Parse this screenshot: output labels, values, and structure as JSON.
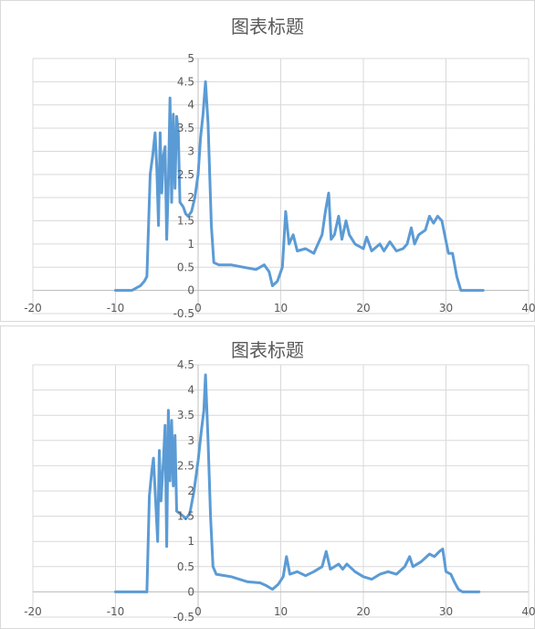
{
  "chart_data": [
    {
      "type": "line",
      "title": "图表标题",
      "xlim": [
        -20,
        40
      ],
      "ylim": [
        -0.5,
        5
      ],
      "x_ticks": [
        "-20",
        "-10",
        "0",
        "10",
        "20",
        "30",
        "40"
      ],
      "y_ticks": [
        "-0.5",
        "0",
        "0.5",
        "1",
        "1.5",
        "2",
        "2.5",
        "3",
        "3.5",
        "4",
        "4.5",
        "5"
      ],
      "series": [
        {
          "color": "#5b9bd5",
          "points": [
            [
              -10,
              0
            ],
            [
              -8,
              0
            ],
            [
              -7,
              0.1
            ],
            [
              -6.5,
              0.2
            ],
            [
              -6.2,
              0.3
            ],
            [
              -5.8,
              2.5
            ],
            [
              -5.5,
              2.9
            ],
            [
              -5.2,
              3.4
            ],
            [
              -5.0,
              2.6
            ],
            [
              -4.8,
              1.4
            ],
            [
              -4.6,
              3.4
            ],
            [
              -4.4,
              2.1
            ],
            [
              -4.2,
              2.9
            ],
            [
              -4.0,
              3.1
            ],
            [
              -3.8,
              1.1
            ],
            [
              -3.6,
              2.3
            ],
            [
              -3.4,
              4.15
            ],
            [
              -3.2,
              1.9
            ],
            [
              -3.0,
              3.8
            ],
            [
              -2.8,
              2.2
            ],
            [
              -2.6,
              3.75
            ],
            [
              -2.4,
              3.4
            ],
            [
              -2.2,
              1.9
            ],
            [
              -1.8,
              1.8
            ],
            [
              -1.5,
              1.65
            ],
            [
              -1.2,
              1.6
            ],
            [
              -0.8,
              1.7
            ],
            [
              -0.4,
              2.0
            ],
            [
              0.0,
              2.5
            ],
            [
              0.3,
              3.3
            ],
            [
              0.6,
              3.8
            ],
            [
              0.9,
              4.5
            ],
            [
              1.2,
              3.6
            ],
            [
              1.6,
              1.4
            ],
            [
              1.9,
              0.6
            ],
            [
              2.5,
              0.55
            ],
            [
              4.0,
              0.55
            ],
            [
              5.5,
              0.5
            ],
            [
              7.0,
              0.45
            ],
            [
              8.0,
              0.55
            ],
            [
              8.6,
              0.4
            ],
            [
              9.0,
              0.1
            ],
            [
              9.6,
              0.2
            ],
            [
              10.2,
              0.5
            ],
            [
              10.6,
              1.7
            ],
            [
              11.0,
              1.0
            ],
            [
              11.5,
              1.2
            ],
            [
              12.0,
              0.85
            ],
            [
              13.0,
              0.9
            ],
            [
              14.0,
              0.8
            ],
            [
              15.0,
              1.2
            ],
            [
              15.4,
              1.7
            ],
            [
              15.8,
              2.1
            ],
            [
              16.1,
              1.1
            ],
            [
              16.5,
              1.2
            ],
            [
              17.0,
              1.6
            ],
            [
              17.4,
              1.1
            ],
            [
              17.9,
              1.5
            ],
            [
              18.3,
              1.2
            ],
            [
              19.0,
              1.0
            ],
            [
              20.0,
              0.9
            ],
            [
              20.4,
              1.15
            ],
            [
              21.0,
              0.85
            ],
            [
              22.0,
              1.0
            ],
            [
              22.5,
              0.85
            ],
            [
              23.2,
              1.05
            ],
            [
              24.0,
              0.85
            ],
            [
              24.8,
              0.9
            ],
            [
              25.3,
              1.0
            ],
            [
              25.8,
              1.35
            ],
            [
              26.2,
              1.0
            ],
            [
              26.7,
              1.2
            ],
            [
              27.5,
              1.3
            ],
            [
              28.0,
              1.6
            ],
            [
              28.5,
              1.45
            ],
            [
              29.0,
              1.6
            ],
            [
              29.5,
              1.5
            ],
            [
              29.9,
              1.15
            ],
            [
              30.3,
              0.8
            ],
            [
              30.8,
              0.8
            ],
            [
              31.3,
              0.3
            ],
            [
              31.8,
              0.0
            ],
            [
              33.0,
              0.0
            ],
            [
              34.5,
              0.0
            ]
          ]
        }
      ]
    },
    {
      "type": "line",
      "title": "图表标题",
      "xlim": [
        -20,
        40
      ],
      "ylim": [
        -0.5,
        4.5
      ],
      "x_ticks": [
        "-20",
        "-10",
        "0",
        "10",
        "20",
        "30",
        "40"
      ],
      "y_ticks": [
        "-0.5",
        "0",
        "0.5",
        "1",
        "1.5",
        "2",
        "2.5",
        "3",
        "3.5",
        "4",
        "4.5"
      ],
      "series": [
        {
          "color": "#5b9bd5",
          "points": [
            [
              -10,
              0
            ],
            [
              -8,
              0
            ],
            [
              -6.2,
              0.0
            ],
            [
              -5.9,
              1.9
            ],
            [
              -5.6,
              2.4
            ],
            [
              -5.4,
              2.65
            ],
            [
              -5.2,
              2.0
            ],
            [
              -4.9,
              1.0
            ],
            [
              -4.7,
              2.8
            ],
            [
              -4.5,
              1.8
            ],
            [
              -4.2,
              2.6
            ],
            [
              -4.0,
              3.3
            ],
            [
              -3.8,
              0.9
            ],
            [
              -3.6,
              3.6
            ],
            [
              -3.4,
              2.2
            ],
            [
              -3.2,
              3.4
            ],
            [
              -3.0,
              2.1
            ],
            [
              -2.8,
              3.1
            ],
            [
              -2.6,
              1.6
            ],
            [
              -2.2,
              1.55
            ],
            [
              -1.8,
              1.5
            ],
            [
              -1.5,
              1.45
            ],
            [
              -1.0,
              1.55
            ],
            [
              -0.5,
              2.0
            ],
            [
              0.0,
              2.6
            ],
            [
              0.4,
              3.2
            ],
            [
              0.7,
              3.6
            ],
            [
              0.9,
              4.3
            ],
            [
              1.2,
              3.0
            ],
            [
              1.5,
              1.5
            ],
            [
              1.8,
              0.5
            ],
            [
              2.2,
              0.35
            ],
            [
              4.0,
              0.3
            ],
            [
              6.0,
              0.2
            ],
            [
              7.5,
              0.18
            ],
            [
              8.3,
              0.12
            ],
            [
              9.0,
              0.05
            ],
            [
              9.7,
              0.15
            ],
            [
              10.3,
              0.3
            ],
            [
              10.7,
              0.7
            ],
            [
              11.1,
              0.35
            ],
            [
              12.0,
              0.4
            ],
            [
              13.0,
              0.32
            ],
            [
              14.0,
              0.4
            ],
            [
              15.0,
              0.5
            ],
            [
              15.5,
              0.8
            ],
            [
              16.0,
              0.45
            ],
            [
              17.0,
              0.55
            ],
            [
              17.5,
              0.45
            ],
            [
              18.0,
              0.55
            ],
            [
              19.0,
              0.4
            ],
            [
              20.0,
              0.3
            ],
            [
              21.0,
              0.25
            ],
            [
              22.0,
              0.35
            ],
            [
              23.0,
              0.4
            ],
            [
              24.0,
              0.35
            ],
            [
              25.0,
              0.5
            ],
            [
              25.6,
              0.7
            ],
            [
              26.0,
              0.5
            ],
            [
              27.0,
              0.6
            ],
            [
              28.0,
              0.75
            ],
            [
              28.6,
              0.7
            ],
            [
              29.2,
              0.8
            ],
            [
              29.6,
              0.85
            ],
            [
              30.0,
              0.4
            ],
            [
              30.6,
              0.35
            ],
            [
              31.0,
              0.2
            ],
            [
              31.5,
              0.05
            ],
            [
              32.0,
              0.0
            ],
            [
              34.0,
              0.0
            ]
          ]
        }
      ]
    }
  ]
}
